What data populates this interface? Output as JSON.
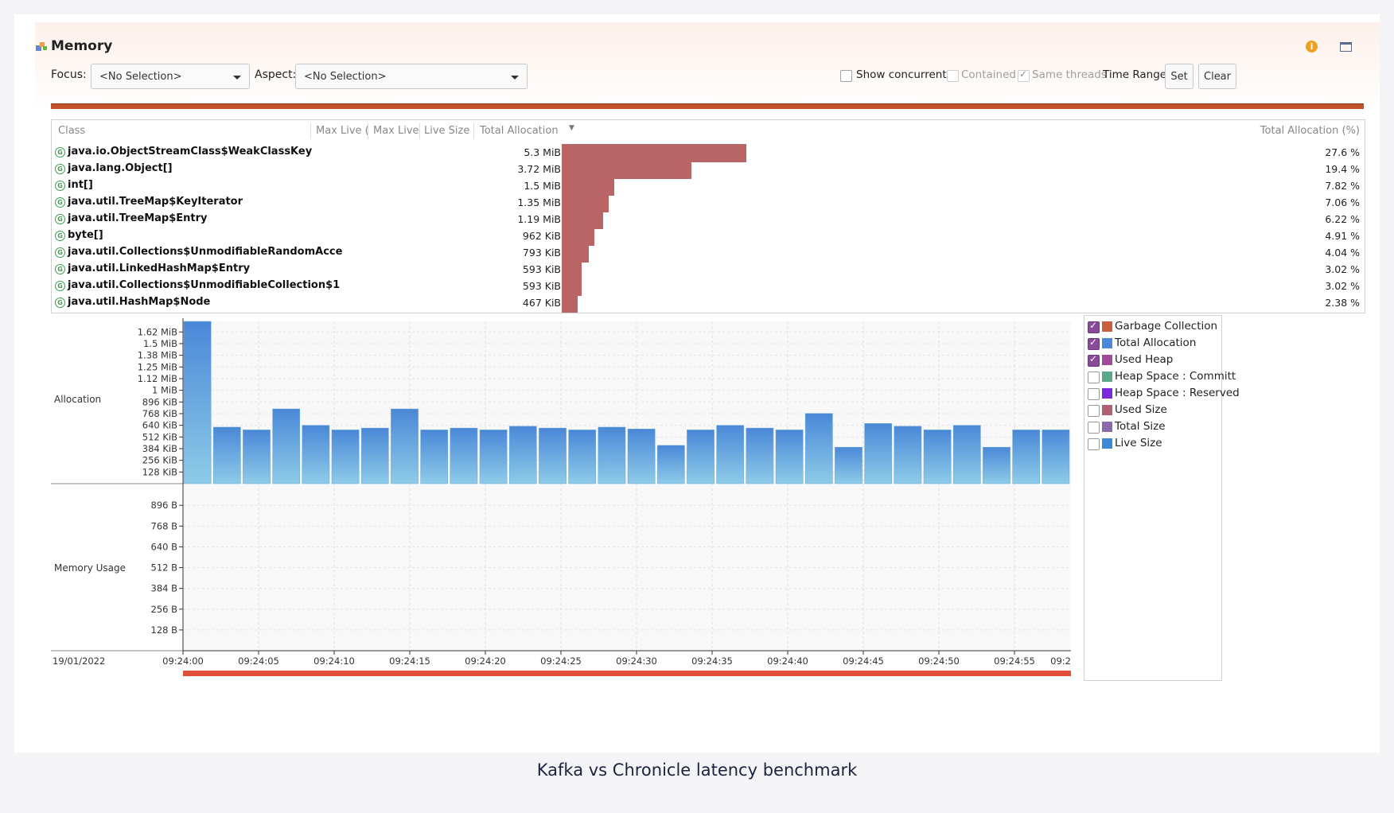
{
  "window": {
    "title": "Memory",
    "info_icon": "info-icon",
    "maximize_icon": "maximize-icon"
  },
  "toolbar": {
    "focus_label": "Focus:",
    "focus_value": "<No Selection>",
    "aspect_label": "Aspect:",
    "aspect_value": "<No Selection>",
    "show_concurrent_label": "Show concurrent:",
    "show_concurrent_checked": false,
    "contained_label": "Contained",
    "contained_checked": false,
    "same_threads_label": "Same threads",
    "same_threads_checked": true,
    "time_range_label": "Time Range:",
    "set_label": "Set",
    "clear_label": "Clear"
  },
  "table": {
    "columns": [
      "Class",
      "Max Live (",
      "Max Live",
      "Live Size",
      "Total Allocation",
      "Total Allocation (%)"
    ],
    "rows": [
      {
        "cls": "java.io.ObjectStreamClass$WeakClassKey",
        "alloc": "5.3 MiB",
        "pct": "27.6 %",
        "frac": 27.6
      },
      {
        "cls": "java.lang.Object[]",
        "alloc": "3.72 MiB",
        "pct": "19.4 %",
        "frac": 19.4
      },
      {
        "cls": "int[]",
        "alloc": "1.5 MiB",
        "pct": "7.82 %",
        "frac": 7.82
      },
      {
        "cls": "java.util.TreeMap$KeyIterator",
        "alloc": "1.35 MiB",
        "pct": "7.06 %",
        "frac": 7.06
      },
      {
        "cls": "java.util.TreeMap$Entry",
        "alloc": "1.19 MiB",
        "pct": "6.22 %",
        "frac": 6.22
      },
      {
        "cls": "byte[]",
        "alloc": "962 KiB",
        "pct": "4.91 %",
        "frac": 4.91
      },
      {
        "cls": "java.util.Collections$UnmodifiableRandomAcce",
        "alloc": "793 KiB",
        "pct": "4.04 %",
        "frac": 4.04
      },
      {
        "cls": "java.util.LinkedHashMap$Entry",
        "alloc": "593 KiB",
        "pct": "3.02 %",
        "frac": 3.02
      },
      {
        "cls": "java.util.Collections$UnmodifiableCollection$1",
        "alloc": "593 KiB",
        "pct": "3.02 %",
        "frac": 3.02
      },
      {
        "cls": "java.util.HashMap$Node",
        "alloc": "467 KiB",
        "pct": "2.38 %",
        "frac": 2.38
      }
    ]
  },
  "chart_data": [
    {
      "type": "bar",
      "ylabel": "Allocation",
      "yticks": [
        "1.62 MiB",
        "1.5 MiB",
        "1.38 MiB",
        "1.25 MiB",
        "1.12 MiB",
        "1 MiB",
        "896 KiB",
        "768 KiB",
        "640 KiB",
        "512 KiB",
        "384 KiB",
        "256 KiB",
        "128 KiB"
      ],
      "ytick_values_kib": [
        1664,
        1536,
        1408,
        1280,
        1152,
        1024,
        896,
        768,
        640,
        512,
        384,
        256,
        128
      ],
      "ylim_kib": [
        0,
        1780
      ],
      "series": [
        {
          "values_kib": [
            1780,
            620,
            590,
            820,
            640,
            590,
            610,
            820,
            590,
            610,
            590,
            630,
            610,
            590,
            620,
            600,
            420,
            590,
            640,
            610,
            590,
            770,
            400,
            660,
            630,
            590,
            640,
            400,
            590,
            590
          ]
        }
      ]
    },
    {
      "type": "line",
      "ylabel": "Memory Usage",
      "yticks": [
        "896 B",
        "768 B",
        "640 B",
        "512 B",
        "384 B",
        "256 B",
        "128 B"
      ],
      "ytick_values_b": [
        896,
        768,
        640,
        512,
        384,
        256,
        128
      ],
      "ylim_b": [
        0,
        1000
      ],
      "series": []
    }
  ],
  "xaxis": {
    "date": "19/01/2022",
    "ticks": [
      "09:24:00",
      "09:24:05",
      "09:24:10",
      "09:24:15",
      "09:24:20",
      "09:24:25",
      "09:24:30",
      "09:24:35",
      "09:24:40",
      "09:24:45",
      "09:24:50",
      "09:24:55",
      "09:2"
    ]
  },
  "legend": [
    {
      "label": "Garbage Collection",
      "checked": true,
      "color": "#c86040"
    },
    {
      "label": "Total Allocation",
      "checked": true,
      "color": "#4a88d8"
    },
    {
      "label": "Used Heap",
      "checked": true,
      "color": "#a04a9a"
    },
    {
      "label": "Heap Space : Committ",
      "checked": false,
      "color": "#5aa888"
    },
    {
      "label": "Heap Space : Reserved",
      "checked": false,
      "color": "#7a2ad8"
    },
    {
      "label": "Used Size",
      "checked": false,
      "color": "#b06070"
    },
    {
      "label": "Total Size",
      "checked": false,
      "color": "#8a6aaa"
    },
    {
      "label": "Live Size",
      "checked": false,
      "color": "#3a8ad8"
    }
  ],
  "caption": "Kafka vs Chronicle latency benchmark",
  "colors": {
    "accent": "#c1512a",
    "bar": "#b96565",
    "chart_bar_top": "#4a88d8",
    "chart_bar_bottom": "#8ecbe8",
    "timeline": "#e05038"
  }
}
